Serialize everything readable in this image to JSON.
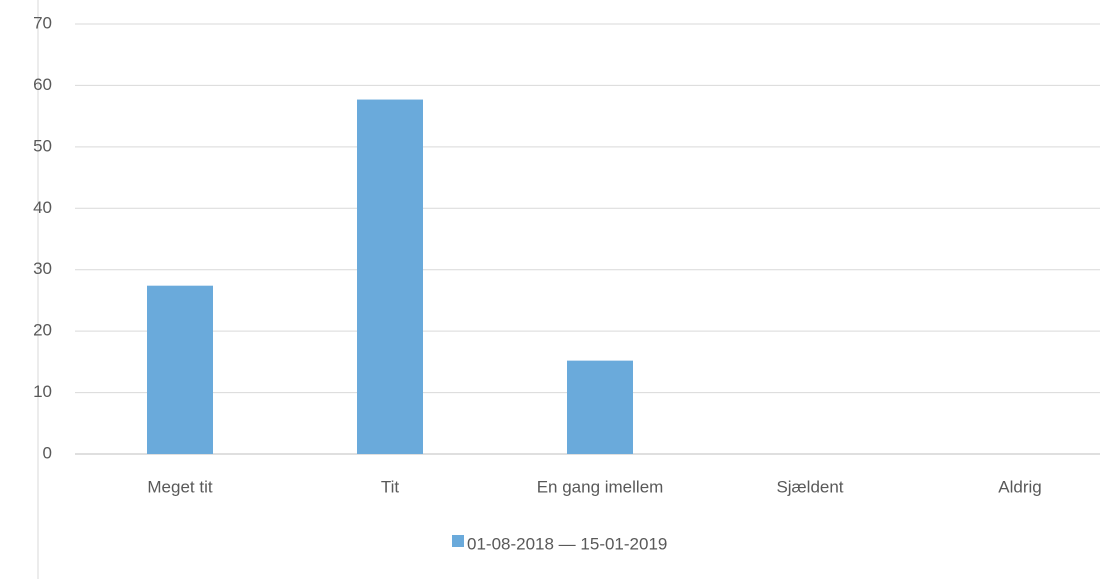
{
  "chart_data": {
    "type": "bar",
    "categories": [
      "Meget tit",
      "Tit",
      "En gang imellem",
      "Sjældent",
      "Aldrig"
    ],
    "series": [
      {
        "name": "01-08-2018 — 15-01-2019",
        "color": "#6aaadb",
        "values": [
          27.4,
          57.7,
          15.2,
          0,
          0
        ]
      }
    ],
    "ylim": [
      0,
      70
    ],
    "yticks": [
      0,
      10,
      20,
      30,
      40,
      50,
      60,
      70
    ],
    "grid": true,
    "legend": "bottom"
  }
}
